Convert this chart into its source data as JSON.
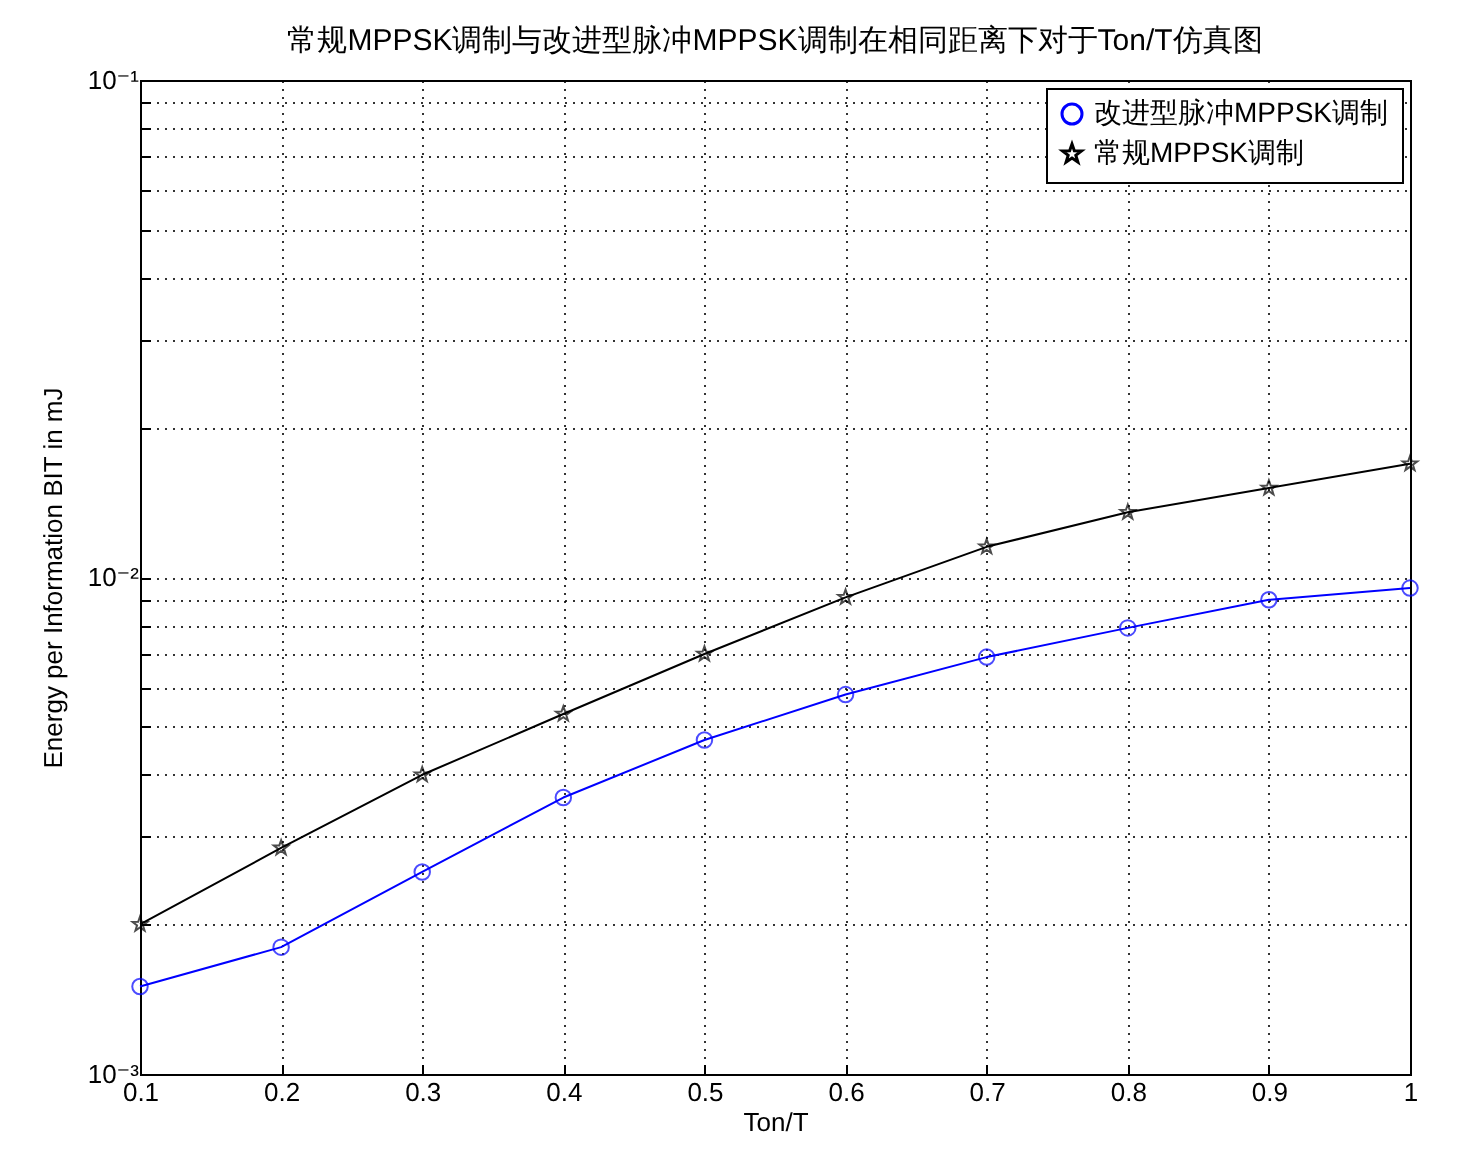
{
  "chart_data": {
    "type": "line",
    "title": "常规MPPSK调制与改进型脉冲MPPSK调制在相同距离下对于Ton/T仿真图",
    "xlabel": "Ton/T",
    "ylabel": "Energy per Information BIT in mJ",
    "x": [
      0.1,
      0.2,
      0.3,
      0.4,
      0.5,
      0.6,
      0.7,
      0.8,
      0.9,
      1
    ],
    "series": [
      {
        "name": "改进型脉冲MPPSK调制",
        "color": "#0000ff",
        "marker": "circle",
        "values": [
          0.0015,
          0.0018,
          0.00255,
          0.0036,
          0.0047,
          0.0058,
          0.0069,
          0.0079,
          0.009,
          0.0095
        ]
      },
      {
        "name": "常规MPPSK调制",
        "color": "#000000",
        "marker": "star",
        "values": [
          0.002,
          0.00285,
          0.004,
          0.0053,
          0.007,
          0.0091,
          0.0115,
          0.0135,
          0.0151,
          0.0169
        ]
      }
    ],
    "log": "y",
    "xlim": [
      0.1,
      1
    ],
    "xticks": [
      0.1,
      0.2,
      0.3,
      0.4,
      0.5,
      0.6,
      0.7,
      0.8,
      0.9,
      1
    ],
    "ylim": [
      0.001,
      0.1
    ],
    "yticks": [
      {
        "value": 0.001,
        "label": "10⁻³"
      },
      {
        "value": 0.002,
        "label": null
      },
      {
        "value": 0.003,
        "label": null
      },
      {
        "value": 0.004,
        "label": null
      },
      {
        "value": 0.005,
        "label": null
      },
      {
        "value": 0.006,
        "label": null
      },
      {
        "value": 0.007,
        "label": null
      },
      {
        "value": 0.008,
        "label": null
      },
      {
        "value": 0.009,
        "label": null
      },
      {
        "value": 0.01,
        "label": "10⁻²"
      },
      {
        "value": 0.02,
        "label": null
      },
      {
        "value": 0.03,
        "label": null
      },
      {
        "value": 0.04,
        "label": null
      },
      {
        "value": 0.05,
        "label": null
      },
      {
        "value": 0.06,
        "label": null
      },
      {
        "value": 0.07,
        "label": null
      },
      {
        "value": 0.08,
        "label": null
      },
      {
        "value": 0.09,
        "label": null
      },
      {
        "value": 0.1,
        "label": "10⁻¹"
      }
    ],
    "grid": true,
    "legend": "top right",
    "line_style": "solid"
  }
}
